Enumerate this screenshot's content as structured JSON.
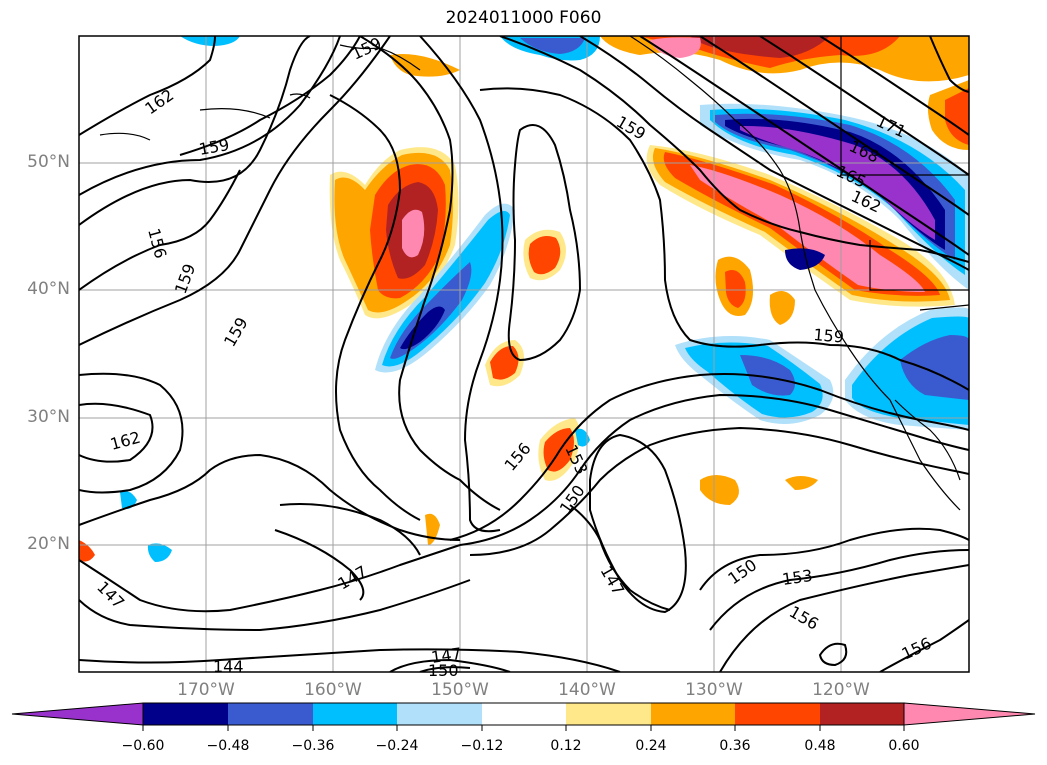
{
  "title": "2024011000 F060",
  "latitude_labels": [
    "50°N",
    "40°N",
    "30°N",
    "20°N"
  ],
  "longitude_labels": [
    "170°W",
    "160°W",
    "150°W",
    "140°W",
    "130°W",
    "120°W"
  ],
  "contour_labels": [
    "162",
    "159",
    "156",
    "159",
    "159",
    "162",
    "159",
    "147",
    "147",
    "144",
    "147",
    "150",
    "156",
    "153",
    "150",
    "147",
    "150",
    "153",
    "156",
    "156",
    "159",
    "171",
    "168",
    "165",
    "162",
    "159"
  ],
  "colorbar": {
    "tick_labels": [
      "−0.60",
      "−0.48",
      "−0.36",
      "−0.24",
      "−0.12",
      "0.12",
      "0.24",
      "0.36",
      "0.48",
      "0.60"
    ],
    "colors": [
      "#9932cc",
      "#00008b",
      "#3a5bd0",
      "#00bfff",
      "#b0e0fa",
      "#ffffff",
      "#ffe88a",
      "#ffa500",
      "#ff4500",
      "#b22222",
      "#ff88b0"
    ]
  },
  "chart_data": {
    "type": "map",
    "title": "2024011000 F060",
    "lat_ticks": [
      50,
      40,
      30,
      20
    ],
    "lon_ticks": [
      -170,
      -160,
      -150,
      -140,
      -130,
      -120
    ],
    "contour_levels": [
      144,
      147,
      150,
      153,
      156,
      159,
      162,
      165,
      168,
      171
    ],
    "color_levels": [
      -0.6,
      -0.48,
      -0.36,
      -0.24,
      -0.12,
      0.12,
      0.24,
      0.36,
      0.48,
      0.6
    ],
    "grid": true
  }
}
